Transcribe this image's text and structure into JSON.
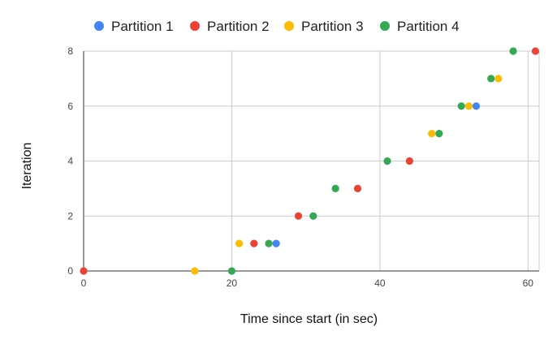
{
  "chart_data": {
    "type": "scatter",
    "title": "",
    "xlabel": "Time since start (in sec)",
    "ylabel": "Iteration",
    "xlim": [
      0,
      61.5
    ],
    "ylim": [
      0,
      8
    ],
    "x_ticks": [
      0,
      20,
      40,
      60
    ],
    "y_ticks": [
      0,
      2,
      4,
      6,
      8
    ],
    "grid": true,
    "legend_position": "top",
    "series": [
      {
        "name": "Partition 1",
        "color": "#4285F4",
        "points": [
          {
            "x": 26,
            "y": 1
          },
          {
            "x": 53,
            "y": 6
          }
        ]
      },
      {
        "name": "Partition 2",
        "color": "#EA4335",
        "points": [
          {
            "x": 0,
            "y": 0
          },
          {
            "x": 23,
            "y": 1
          },
          {
            "x": 29,
            "y": 2
          },
          {
            "x": 37,
            "y": 3
          },
          {
            "x": 44,
            "y": 4
          },
          {
            "x": 61,
            "y": 8
          }
        ]
      },
      {
        "name": "Partition 3",
        "color": "#FBBC04",
        "points": [
          {
            "x": 15,
            "y": 0
          },
          {
            "x": 21,
            "y": 1
          },
          {
            "x": 47,
            "y": 5
          },
          {
            "x": 52,
            "y": 6
          },
          {
            "x": 56,
            "y": 7
          }
        ]
      },
      {
        "name": "Partition 4",
        "color": "#34A853",
        "points": [
          {
            "x": 20,
            "y": 0
          },
          {
            "x": 25,
            "y": 1
          },
          {
            "x": 31,
            "y": 2
          },
          {
            "x": 34,
            "y": 3
          },
          {
            "x": 41,
            "y": 4
          },
          {
            "x": 48,
            "y": 5
          },
          {
            "x": 51,
            "y": 6
          },
          {
            "x": 55,
            "y": 7
          },
          {
            "x": 58,
            "y": 8
          }
        ]
      }
    ]
  }
}
